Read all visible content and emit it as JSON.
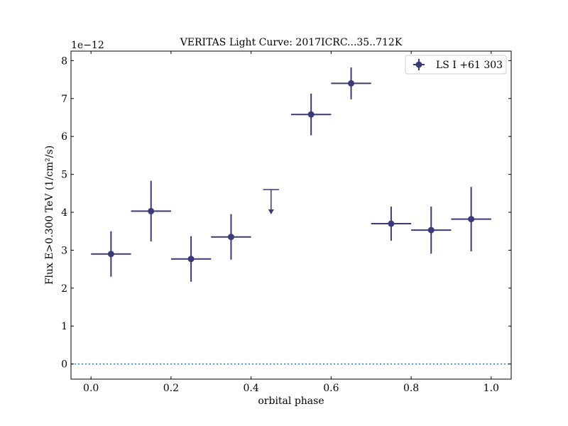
{
  "chart_data": {
    "type": "scatter",
    "title": "VERITAS Light Curve: 2017ICRC...35..712K",
    "xlabel": "orbital phase",
    "ylabel": "Flux E>0.300 TeV (1/cm²/s)",
    "y_offset_label": "1e−12",
    "xlim": [
      -0.05,
      1.05
    ],
    "ylim": [
      -0.4,
      8.25
    ],
    "y_scale_factor": "1e-12",
    "x_ticks": [
      0.0,
      0.2,
      0.4,
      0.6,
      0.8,
      1.0
    ],
    "x_tick_labels": [
      "0.0",
      "0.2",
      "0.4",
      "0.6",
      "0.8",
      "1.0"
    ],
    "y_ticks": [
      0,
      1,
      2,
      3,
      4,
      5,
      6,
      7,
      8
    ],
    "y_tick_labels": [
      "0",
      "1",
      "2",
      "3",
      "4",
      "5",
      "6",
      "7",
      "8"
    ],
    "grid": false,
    "legend_position": "top-right",
    "zero_line": true,
    "series": [
      {
        "name": "LS I +61 303",
        "color": "#3a3a78",
        "points": [
          {
            "x": 0.05,
            "xerr": 0.05,
            "y": 2.9,
            "yerr_low": 0.6,
            "yerr_high": 0.6
          },
          {
            "x": 0.15,
            "xerr": 0.05,
            "y": 4.03,
            "yerr_low": 0.8,
            "yerr_high": 0.8
          },
          {
            "x": 0.25,
            "xerr": 0.05,
            "y": 2.77,
            "yerr_low": 0.6,
            "yerr_high": 0.6
          },
          {
            "x": 0.35,
            "xerr": 0.05,
            "y": 3.35,
            "yerr_low": 0.6,
            "yerr_high": 0.6
          },
          {
            "x": 0.55,
            "xerr": 0.05,
            "y": 6.58,
            "yerr_low": 0.55,
            "yerr_high": 0.55
          },
          {
            "x": 0.65,
            "xerr": 0.05,
            "y": 7.4,
            "yerr_low": 0.42,
            "yerr_high": 0.42
          },
          {
            "x": 0.75,
            "xerr": 0.05,
            "y": 3.7,
            "yerr_low": 0.45,
            "yerr_high": 0.45
          },
          {
            "x": 0.85,
            "xerr": 0.05,
            "y": 3.53,
            "yerr_low": 0.62,
            "yerr_high": 0.62
          },
          {
            "x": 0.95,
            "xerr": 0.05,
            "y": 3.82,
            "yerr_low": 0.85,
            "yerr_high": 0.85
          }
        ],
        "upper_limits": [
          {
            "x": 0.45,
            "xerr": 0.02,
            "y": 4.6
          }
        ]
      }
    ],
    "zero_line_color": "#1f77b4"
  }
}
